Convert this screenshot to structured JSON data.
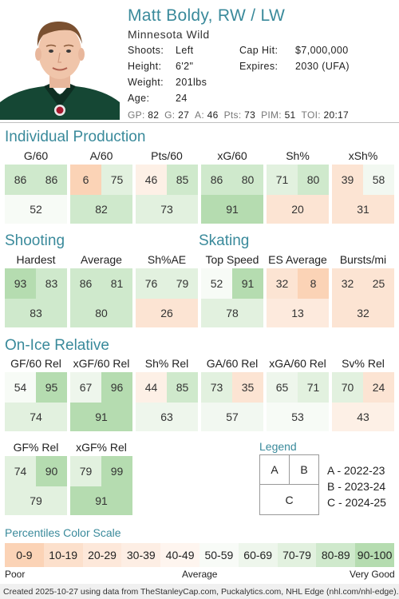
{
  "player": {
    "name": "Matt Boldy, RW / LW",
    "team": "Minnesota Wild",
    "shoots_label": "Shoots:",
    "shoots": "Left",
    "height_label": "Height:",
    "height": "6'2\"",
    "weight_label": "Weight:",
    "weight": "201lbs",
    "age_label": "Age:",
    "age": "24",
    "cap_label": "Cap Hit:",
    "cap": "$7,000,000",
    "expires_label": "Expires:",
    "expires": "2030 (UFA)"
  },
  "statline": [
    {
      "label": "GP:",
      "value": "82"
    },
    {
      "label": "G:",
      "value": "27"
    },
    {
      "label": "A:",
      "value": "46"
    },
    {
      "label": "Pts:",
      "value": "73"
    },
    {
      "label": "PIM:",
      "value": "51"
    },
    {
      "label": "TOI:",
      "value": "20:17"
    }
  ],
  "sections": {
    "production": "Individual Production",
    "shooting": "Shooting",
    "skating": "Skating",
    "onice": "On-Ice Relative"
  },
  "metrics": [
    {
      "key": "g60",
      "label": "G/60",
      "a": "86",
      "b": "86",
      "c": "52",
      "ca": "#cfe9cc",
      "cb": "#cfe9cc",
      "cc": "#f7fbf6"
    },
    {
      "key": "a60",
      "label": "A/60",
      "a": "6",
      "b": "75",
      "c": "82",
      "ca": "#fbd3b6",
      "cb": "#e2f1df",
      "cc": "#cfe9cc"
    },
    {
      "key": "pts60",
      "label": "Pts/60",
      "a": "46",
      "b": "85",
      "c": "73",
      "ca": "#fdf0e6",
      "cb": "#cfe9cc",
      "cc": "#e2f1df"
    },
    {
      "key": "xg60",
      "label": "xG/60",
      "a": "86",
      "b": "80",
      "c": "91",
      "ca": "#cfe9cc",
      "cb": "#cfe9cc",
      "cc": "#b5dcb0"
    },
    {
      "key": "shp",
      "label": "Sh%",
      "a": "71",
      "b": "80",
      "c": "20",
      "ca": "#e2f1df",
      "cb": "#cfe9cc",
      "cc": "#fce4d3"
    },
    {
      "key": "xshp",
      "label": "xSh%",
      "a": "39",
      "b": "58",
      "c": "31",
      "ca": "#fce4d3",
      "cb": "#f2f8f1",
      "cc": "#fce4d3"
    },
    {
      "key": "hardest",
      "label": "Hardest",
      "a": "93",
      "b": "83",
      "c": "83",
      "ca": "#b5dcb0",
      "cb": "#cfe9cc",
      "cc": "#cfe9cc"
    },
    {
      "key": "average",
      "label": "Average",
      "a": "86",
      "b": "81",
      "c": "80",
      "ca": "#cfe9cc",
      "cb": "#cfe9cc",
      "cc": "#cfe9cc"
    },
    {
      "key": "shpae",
      "label": "Sh%AE",
      "a": "76",
      "b": "79",
      "c": "26",
      "ca": "#e2f1df",
      "cb": "#e2f1df",
      "cc": "#fce4d3"
    },
    {
      "key": "topspeed",
      "label": "Top Speed",
      "a": "52",
      "b": "91",
      "c": "78",
      "ca": "#f7fbf6",
      "cb": "#b5dcb0",
      "cc": "#e2f1df"
    },
    {
      "key": "esavg",
      "label": "ES Average",
      "a": "32",
      "b": "8",
      "c": "13",
      "ca": "#fce4d3",
      "cb": "#fbd3b6",
      "cc": "#fdeadd"
    },
    {
      "key": "bursts",
      "label": "Bursts/mi",
      "a": "32",
      "b": "25",
      "c": "32",
      "ca": "#fce4d3",
      "cb": "#fce4d3",
      "cc": "#fce4d3"
    },
    {
      "key": "gf60",
      "label": "GF/60 Rel",
      "a": "54",
      "b": "95",
      "c": "74",
      "ca": "#f7fbf6",
      "cb": "#b5dcb0",
      "cc": "#e2f1df"
    },
    {
      "key": "xgf60",
      "label": "xGF/60 Rel",
      "a": "67",
      "b": "96",
      "c": "91",
      "ca": "#eef6ec",
      "cb": "#b5dcb0",
      "cc": "#b5dcb0"
    },
    {
      "key": "shrel",
      "label": "Sh% Rel",
      "a": "44",
      "b": "85",
      "c": "63",
      "ca": "#fdf0e6",
      "cb": "#cfe9cc",
      "cc": "#eef6ec"
    },
    {
      "key": "ga60",
      "label": "GA/60 Rel",
      "a": "73",
      "b": "35",
      "c": "57",
      "ca": "#e2f1df",
      "cb": "#fce4d3",
      "cc": "#f2f8f1"
    },
    {
      "key": "xga60",
      "label": "xGA/60 Rel",
      "a": "65",
      "b": "71",
      "c": "53",
      "ca": "#eef6ec",
      "cb": "#e2f1df",
      "cc": "#f7fbf6"
    },
    {
      "key": "svrel",
      "label": "Sv% Rel",
      "a": "70",
      "b": "24",
      "c": "43",
      "ca": "#e2f1df",
      "cb": "#fce4d3",
      "cc": "#fdf0e6"
    },
    {
      "key": "gfpct",
      "label": "GF% Rel",
      "a": "74",
      "b": "90",
      "c": "79",
      "ca": "#e2f1df",
      "cb": "#b5dcb0",
      "cc": "#e2f1df"
    },
    {
      "key": "xgfpct",
      "label": "xGF% Rel",
      "a": "79",
      "b": "99",
      "c": "91",
      "ca": "#e2f1df",
      "cb": "#b5dcb0",
      "cc": "#b5dcb0"
    }
  ],
  "legend": {
    "title": "Legend",
    "a": "A",
    "b": "B",
    "c": "C",
    "a_text": "A - 2022-23",
    "b_text": "B - 2023-24",
    "c_text": "C - 2024-25"
  },
  "scale": {
    "title": "Percentiles Color Scale",
    "bins": [
      {
        "label": "0-9",
        "color": "#fbd3b6"
      },
      {
        "label": "10-19",
        "color": "#fce0cc"
      },
      {
        "label": "20-29",
        "color": "#fde8da"
      },
      {
        "label": "30-39",
        "color": "#fdeee4"
      },
      {
        "label": "40-49",
        "color": "#fef5ef"
      },
      {
        "label": "50-59",
        "color": "#f8fbf7"
      },
      {
        "label": "60-69",
        "color": "#eef6ec"
      },
      {
        "label": "70-79",
        "color": "#e2f1df"
      },
      {
        "label": "80-89",
        "color": "#cfe9cc"
      },
      {
        "label": "90-100",
        "color": "#b5dcb0"
      }
    ],
    "poor": "Poor",
    "average": "Average",
    "very_good": "Very Good"
  },
  "footer": "Created 2025-10-27 using data from TheStanleyCap.com, Puckalytics.com, NHL Edge (nhl.com/nhl-edge)."
}
